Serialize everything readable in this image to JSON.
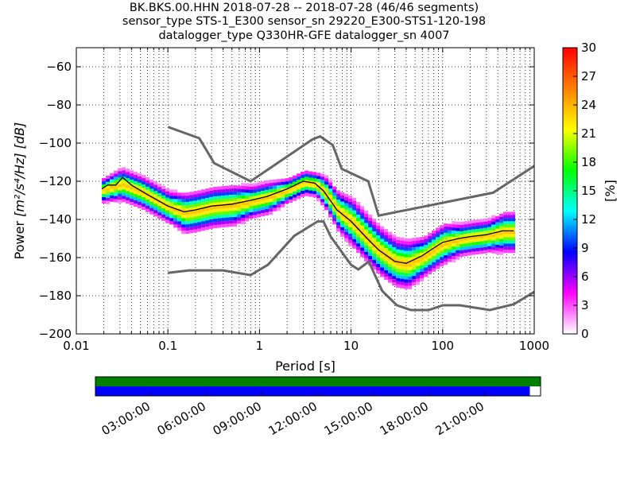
{
  "title": {
    "line1": "BK.BKS.00.HHN   2018-07-28 -- 2018-07-28  (46/46 segments)",
    "line2": "sensor_type STS-1_E300 sensor_sn 29220_E300-STS1-120-198",
    "line3": "datalogger_type Q330HR-GFE datalogger_sn 4007"
  },
  "chart_data": [
    {
      "type": "heatmap",
      "subtype": "probabilistic-psd",
      "xlabel": "Period [s]",
      "ylabel": "Power",
      "ylabel_math": "[m²/s⁴/Hz] [dB]",
      "xscale": "log",
      "xlim": [
        0.01,
        1000
      ],
      "ylim": [
        -200,
        -50
      ],
      "x_ticks": [
        0.01,
        0.1,
        1,
        10,
        100,
        1000
      ],
      "x_tick_labels": [
        "0.01",
        "0.1",
        "1",
        "10",
        "100",
        "1000"
      ],
      "y_ticks": [
        -200,
        -180,
        -160,
        -140,
        -120,
        -100,
        -80,
        -60
      ],
      "y_tick_labels": [
        "−200",
        "−180",
        "−160",
        "−140",
        "−120",
        "−100",
        "−80",
        "−60"
      ],
      "grid": "dotted",
      "colorbar": {
        "label": "[%]",
        "range": [
          0,
          30
        ],
        "ticks": [
          "0",
          "3",
          "6",
          "9",
          "12",
          "15",
          "18",
          "21",
          "24",
          "27",
          "30"
        ],
        "colormap": [
          "#ffffff",
          "#ff00ff",
          "#0000ff",
          "#00ffff",
          "#00ff00",
          "#ffff00",
          "#ff8000",
          "#ff0000"
        ]
      },
      "mean_curve": [
        [
          0.019,
          -124
        ],
        [
          0.022,
          -122
        ],
        [
          0.027,
          -122
        ],
        [
          0.032,
          -118
        ],
        [
          0.04,
          -122
        ],
        [
          0.06,
          -127
        ],
        [
          0.1,
          -133
        ],
        [
          0.15,
          -136
        ],
        [
          0.2,
          -135
        ],
        [
          0.3,
          -133
        ],
        [
          0.5,
          -132
        ],
        [
          0.8,
          -130
        ],
        [
          1.2,
          -128
        ],
        [
          2,
          -124
        ],
        [
          3,
          -120
        ],
        [
          4,
          -121
        ],
        [
          5,
          -125
        ],
        [
          7,
          -135
        ],
        [
          10,
          -141
        ],
        [
          15,
          -150
        ],
        [
          20,
          -156
        ],
        [
          30,
          -162
        ],
        [
          40,
          -163
        ],
        [
          60,
          -159
        ],
        [
          80,
          -155
        ],
        [
          100,
          -152
        ],
        [
          150,
          -150
        ],
        [
          200,
          -149
        ],
        [
          300,
          -148
        ],
        [
          450,
          -146
        ],
        [
          600,
          -146
        ]
      ],
      "density_band": [
        [
          0.019,
          -124,
          3
        ],
        [
          0.03,
          -121,
          4
        ],
        [
          0.05,
          -125,
          4
        ],
        [
          0.1,
          -133,
          4
        ],
        [
          0.15,
          -136,
          5
        ],
        [
          0.2,
          -135,
          5
        ],
        [
          0.3,
          -133,
          5
        ],
        [
          0.5,
          -132,
          5
        ],
        [
          0.8,
          -130,
          4
        ],
        [
          1.2,
          -128,
          4
        ],
        [
          2,
          -124,
          3
        ],
        [
          3,
          -120,
          3
        ],
        [
          4,
          -121,
          3
        ],
        [
          5,
          -125,
          4
        ],
        [
          7,
          -135,
          5
        ],
        [
          10,
          -141,
          6
        ],
        [
          15,
          -150,
          6
        ],
        [
          20,
          -156,
          6
        ],
        [
          30,
          -162,
          6
        ],
        [
          40,
          -163,
          6
        ],
        [
          60,
          -159,
          5
        ],
        [
          80,
          -155,
          5
        ],
        [
          100,
          -152,
          5
        ],
        [
          150,
          -150,
          4
        ],
        [
          200,
          -149,
          4
        ],
        [
          300,
          -148,
          4
        ],
        [
          450,
          -146,
          5
        ],
        [
          600,
          -146,
          5
        ]
      ],
      "nhnm": [
        [
          0.1,
          -91.5
        ],
        [
          0.22,
          -97.4
        ],
        [
          0.32,
          -110.5
        ],
        [
          0.8,
          -120
        ],
        [
          3.8,
          -98
        ],
        [
          4.6,
          -96.5
        ],
        [
          6.3,
          -101
        ],
        [
          7.9,
          -113.5
        ],
        [
          15.4,
          -120
        ],
        [
          20,
          -138
        ],
        [
          354.8,
          -126
        ],
        [
          1000,
          -112
        ]
      ],
      "nlnm": [
        [
          0.1,
          -168
        ],
        [
          0.17,
          -166.7
        ],
        [
          0.4,
          -166.7
        ],
        [
          0.8,
          -169.2
        ],
        [
          1.24,
          -163.7
        ],
        [
          2.4,
          -148.6
        ],
        [
          4.3,
          -141.1
        ],
        [
          5,
          -141.1
        ],
        [
          6,
          -149
        ],
        [
          10,
          -163.8
        ],
        [
          12,
          -166.2
        ],
        [
          15.6,
          -162.1
        ],
        [
          21.9,
          -177.5
        ],
        [
          31.6,
          -185
        ],
        [
          45,
          -187.5
        ],
        [
          70,
          -187.5
        ],
        [
          101,
          -185
        ],
        [
          154,
          -185
        ],
        [
          328,
          -187.5
        ],
        [
          600,
          -184.4
        ],
        [
          1000,
          -178
        ]
      ]
    },
    {
      "type": "timeline",
      "x_tick_labels": [
        "03:00:00",
        "06:00:00",
        "09:00:00",
        "12:00:00",
        "15:00:00",
        "18:00:00",
        "21:00:00"
      ],
      "x_ticks_hours": [
        3,
        6,
        9,
        12,
        15,
        18,
        21
      ],
      "xlim_hours": [
        0,
        24
      ],
      "rows": [
        {
          "color": "#008000",
          "spans_hours": [
            [
              0,
              24
            ]
          ]
        },
        {
          "color": "#0000ff",
          "spans_hours": [
            [
              0,
              23.42
            ]
          ]
        }
      ]
    }
  ]
}
